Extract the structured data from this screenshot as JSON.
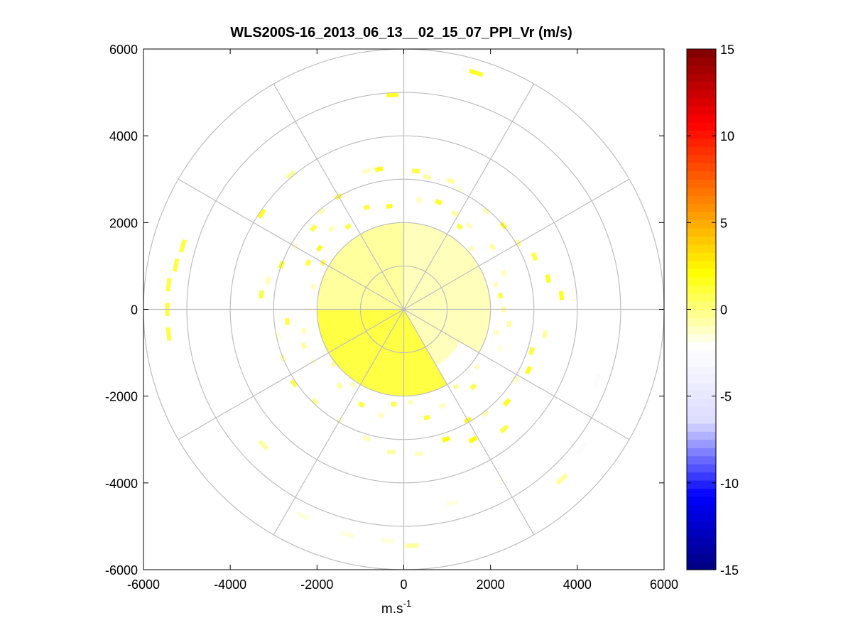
{
  "chart_data": {
    "type": "heatmap",
    "subtype": "polar-ppi",
    "title": "WLS200S-16_2013_06_13__02_15_07_PPI_Vr (m/s)",
    "xlabel": {
      "base": "m.s",
      "superscript": "-1"
    },
    "ylabel": "",
    "xlim": [
      -6000,
      6000
    ],
    "ylim": [
      -6000,
      6000
    ],
    "x_ticks": [
      -6000,
      -4000,
      -2000,
      0,
      2000,
      4000,
      6000
    ],
    "y_ticks": [
      -6000,
      -4000,
      -2000,
      0,
      2000,
      4000,
      6000
    ],
    "x_tick_labels": [
      "-6000",
      "-4000",
      "-2000",
      "0",
      "2000",
      "4000",
      "6000"
    ],
    "y_tick_labels": [
      "-6000",
      "-4000",
      "-2000",
      "0",
      "2000",
      "4000",
      "6000"
    ],
    "polar_grid": {
      "rings": [
        1000,
        2000,
        3000,
        4000,
        5000,
        6000
      ],
      "spokes_deg": [
        0,
        30,
        60,
        90,
        120,
        150,
        180,
        210,
        240,
        270,
        300,
        330
      ]
    },
    "colorbar": {
      "range": [
        -15,
        15
      ],
      "ticks": [
        -15,
        -10,
        -5,
        0,
        5,
        10,
        15
      ],
      "tick_labels": [
        "-15",
        "-10",
        "-5",
        "0",
        "5",
        "10",
        "15"
      ],
      "colormap": [
        "#000080",
        "#0000ff",
        "#dcdcff",
        "#ffffff",
        "#ffff00",
        "#ff8000",
        "#ff0000",
        "#800000"
      ]
    },
    "solid_sectors": [
      {
        "az_from": 270,
        "az_to": 360,
        "r_from": 0,
        "r_to": 2000,
        "value": -0.5
      },
      {
        "az_from": 0,
        "az_to": 120,
        "r_from": 0,
        "r_to": 2000,
        "value": -1
      },
      {
        "az_from": 120,
        "az_to": 150,
        "r_from": 0,
        "r_to": 1500,
        "value": -1
      },
      {
        "az_from": 150,
        "az_to": 270,
        "r_from": 0,
        "r_to": 2000,
        "value": 1
      }
    ],
    "cells": [
      {
        "az": 15,
        "r": 5700,
        "value": -2.5
      },
      {
        "az": 17,
        "r": 5700,
        "value": 1.5
      },
      {
        "az": 357,
        "r": 4950,
        "value": 1.5
      },
      {
        "az": 304,
        "r": 3950,
        "value": 1.5
      },
      {
        "az": 286,
        "r": 5300,
        "value": 1.0
      },
      {
        "az": 281,
        "r": 5350,
        "value": 1.0
      },
      {
        "az": 276,
        "r": 5450,
        "value": 1.0
      },
      {
        "az": 270,
        "r": 5450,
        "value": 1.0
      },
      {
        "az": 264,
        "r": 5450,
        "value": 1.0
      },
      {
        "az": 350,
        "r": 3280,
        "value": 1.5
      },
      {
        "az": 345,
        "r": 3300,
        "value": -1.0
      },
      {
        "az": 5,
        "r": 3200,
        "value": 1.0
      },
      {
        "az": 10,
        "r": 3100,
        "value": -0.5
      },
      {
        "az": 20,
        "r": 3150,
        "value": -0.5
      },
      {
        "az": 25,
        "r": 3050,
        "value": -1.5
      },
      {
        "az": 330,
        "r": 3000,
        "value": 1.0
      },
      {
        "az": 320,
        "r": 2950,
        "value": -1.0
      },
      {
        "az": 312,
        "r": 2800,
        "value": 1.0
      },
      {
        "az": 300,
        "r": 2900,
        "value": -1.5
      },
      {
        "az": 290,
        "r": 3000,
        "value": 1.5
      },
      {
        "az": 282,
        "r": 3200,
        "value": -1.0
      },
      {
        "az": 276,
        "r": 3300,
        "value": 1.0
      },
      {
        "az": 40,
        "r": 2950,
        "value": -1.0
      },
      {
        "az": 50,
        "r": 3000,
        "value": 1.5
      },
      {
        "az": 60,
        "r": 3050,
        "value": -0.5
      },
      {
        "az": 68,
        "r": 3250,
        "value": 1.0
      },
      {
        "az": 78,
        "r": 3400,
        "value": 1.5
      },
      {
        "az": 85,
        "r": 3650,
        "value": 1.5
      },
      {
        "az": 100,
        "r": 3300,
        "value": -0.5
      },
      {
        "az": 108,
        "r": 3100,
        "value": 1.0
      },
      {
        "az": 116,
        "r": 3200,
        "value": 1.5
      },
      {
        "az": 122,
        "r": 3050,
        "value": -1.0
      },
      {
        "az": 132,
        "r": 3200,
        "value": 1.5
      },
      {
        "az": 142,
        "r": 3050,
        "value": -1.0
      },
      {
        "az": 150,
        "r": 2950,
        "value": 1.5
      },
      {
        "az": 162,
        "r": 3150,
        "value": 2.0
      },
      {
        "az": 174,
        "r": 3350,
        "value": -1.0
      },
      {
        "az": 185,
        "r": 3300,
        "value": -0.5
      },
      {
        "az": 196,
        "r": 3100,
        "value": -1.0
      },
      {
        "az": 210,
        "r": 2950,
        "value": -1.5
      },
      {
        "az": 224,
        "r": 2950,
        "value": -0.5
      },
      {
        "az": 236,
        "r": 3050,
        "value": 1.0
      },
      {
        "az": 248,
        "r": 3000,
        "value": -1.0
      },
      {
        "az": 258,
        "r": 2950,
        "value": -1.5
      },
      {
        "az": 264,
        "r": 2700,
        "value": 1.0
      },
      {
        "az": 340,
        "r": 2500,
        "value": 1.0
      },
      {
        "az": 352,
        "r": 2400,
        "value": 1.5
      },
      {
        "az": 8,
        "r": 2550,
        "value": -1.0
      },
      {
        "az": 18,
        "r": 2600,
        "value": 1.5
      },
      {
        "az": 28,
        "r": 2500,
        "value": -0.5
      },
      {
        "az": 38,
        "r": 2450,
        "value": -1.0
      },
      {
        "az": 55,
        "r": 2500,
        "value": -0.5
      },
      {
        "az": 70,
        "r": 2450,
        "value": -1.0
      },
      {
        "az": 90,
        "r": 2300,
        "value": -0.5
      },
      {
        "az": 98,
        "r": 2450,
        "value": -0.5
      },
      {
        "az": 112,
        "r": 2400,
        "value": -1.5
      },
      {
        "az": 138,
        "r": 2400,
        "value": 1.0
      },
      {
        "az": 158,
        "r": 2400,
        "value": -1.0
      },
      {
        "az": 168,
        "r": 2550,
        "value": 1.0
      },
      {
        "az": 192,
        "r": 2500,
        "value": -1.0
      },
      {
        "az": 204,
        "r": 2400,
        "value": 1.0
      },
      {
        "az": 220,
        "r": 2300,
        "value": -0.5
      },
      {
        "az": 240,
        "r": 2400,
        "value": -1.5
      },
      {
        "az": 250,
        "r": 2450,
        "value": -0.5
      },
      {
        "az": 258,
        "r": 2350,
        "value": -1.0
      },
      {
        "az": 296,
        "r": 2450,
        "value": 1.0
      },
      {
        "az": 306,
        "r": 2400,
        "value": 1.5
      },
      {
        "az": 318,
        "r": 2500,
        "value": -1.0
      },
      {
        "az": 326,
        "r": 2300,
        "value": 1.0
      },
      {
        "az": 320,
        "r": 4050,
        "value": -0.5
      },
      {
        "az": 360,
        "r": 1900,
        "value": -0.5
      },
      {
        "az": 48,
        "r": 2100,
        "value": -1.0
      },
      {
        "az": 75,
        "r": 2200,
        "value": -1.0
      },
      {
        "az": 82,
        "r": 2250,
        "value": 1.0
      },
      {
        "az": 104,
        "r": 2200,
        "value": -1.0
      },
      {
        "az": 128,
        "r": 2150,
        "value": -1.0
      },
      {
        "az": 146,
        "r": 2150,
        "value": -0.5
      },
      {
        "az": 176,
        "r": 2150,
        "value": -1.0
      },
      {
        "az": 186,
        "r": 2200,
        "value": 1.0
      },
      {
        "az": 214,
        "r": 2100,
        "value": -1.0
      },
      {
        "az": 232,
        "r": 2050,
        "value": -0.5
      },
      {
        "az": 284,
        "r": 2150,
        "value": -1.0
      },
      {
        "az": 300,
        "r": 2150,
        "value": 1.0
      },
      {
        "az": 34,
        "r": 2300,
        "value": 1.0
      },
      {
        "az": 110,
        "r": 4750,
        "value": -2.5
      },
      {
        "az": 120,
        "r": 4950,
        "value": -3.0
      },
      {
        "az": 128,
        "r": 5200,
        "value": -2.5
      },
      {
        "az": 137,
        "r": 5350,
        "value": -0.5
      },
      {
        "az": 150,
        "r": 4550,
        "value": -2.0
      },
      {
        "az": 166,
        "r": 4600,
        "value": -1.5
      },
      {
        "az": 178,
        "r": 5450,
        "value": -0.5
      },
      {
        "az": 184,
        "r": 5350,
        "value": -1.5
      },
      {
        "az": 194,
        "r": 5350,
        "value": -1.5
      },
      {
        "az": 206,
        "r": 5300,
        "value": -1.5
      },
      {
        "az": 226,
        "r": 4500,
        "value": -0.5
      },
      {
        "az": 140,
        "r": 3600,
        "value": 1.0
      },
      {
        "az": 152,
        "r": 3400,
        "value": 2.0
      }
    ]
  }
}
